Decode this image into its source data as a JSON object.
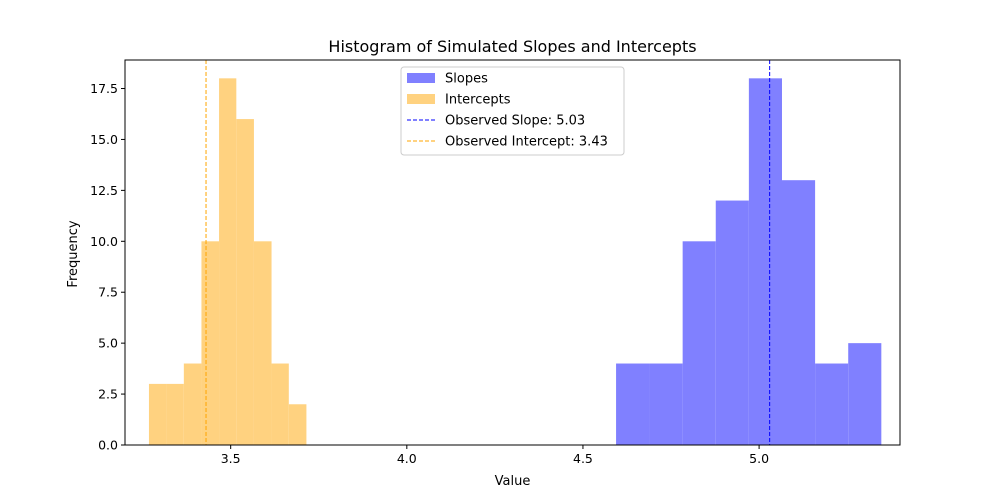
{
  "chart_data": {
    "type": "histogram",
    "title": "Histogram of Simulated Slopes and Intercepts",
    "xlabel": "Value",
    "ylabel": "Frequency",
    "xlim": [
      3.2,
      5.4
    ],
    "ylim": [
      0,
      18.9
    ],
    "x_ticks": [
      3.5,
      4.0,
      4.5,
      5.0
    ],
    "x_tick_labels": [
      "3.5",
      "4.0",
      "4.5",
      "5.0"
    ],
    "y_ticks": [
      0,
      2.5,
      5.0,
      7.5,
      10.0,
      12.5,
      15.0,
      17.5
    ],
    "y_tick_labels": [
      "0.0",
      "2.5",
      "5.0",
      "7.5",
      "10.0",
      "12.5",
      "15.0",
      "17.5"
    ],
    "grid": false,
    "legend_position": "upper center",
    "series": [
      {
        "name": "Slopes",
        "color": "#8080ff",
        "bins": [
          {
            "x0": 4.594,
            "x1": 4.689,
            "count": 4
          },
          {
            "x0": 4.689,
            "x1": 4.783,
            "count": 4
          },
          {
            "x0": 4.783,
            "x1": 4.877,
            "count": 10
          },
          {
            "x0": 4.877,
            "x1": 4.971,
            "count": 12
          },
          {
            "x0": 4.971,
            "x1": 5.065,
            "count": 18
          },
          {
            "x0": 5.065,
            "x1": 5.159,
            "count": 13
          },
          {
            "x0": 5.159,
            "x1": 5.253,
            "count": 4
          },
          {
            "x0": 5.253,
            "x1": 5.347,
            "count": 5
          }
        ]
      },
      {
        "name": "Intercepts",
        "color": "#ffd280",
        "bins": [
          {
            "x0": 3.268,
            "x1": 3.318,
            "count": 3
          },
          {
            "x0": 3.318,
            "x1": 3.367,
            "count": 3
          },
          {
            "x0": 3.367,
            "x1": 3.417,
            "count": 4
          },
          {
            "x0": 3.417,
            "x1": 3.467,
            "count": 10
          },
          {
            "x0": 3.467,
            "x1": 3.516,
            "count": 18
          },
          {
            "x0": 3.516,
            "x1": 3.566,
            "count": 16
          },
          {
            "x0": 3.566,
            "x1": 3.616,
            "count": 10
          },
          {
            "x0": 3.616,
            "x1": 3.665,
            "count": 4
          },
          {
            "x0": 3.665,
            "x1": 3.715,
            "count": 2
          }
        ]
      }
    ],
    "reference_lines": [
      {
        "name": "Observed Slope: 5.03",
        "x": 5.03,
        "color": "#0000ff",
        "style": "dashed"
      },
      {
        "name": "Observed Intercept: 3.43",
        "x": 3.43,
        "color": "#ffa500",
        "style": "dashed"
      }
    ]
  }
}
